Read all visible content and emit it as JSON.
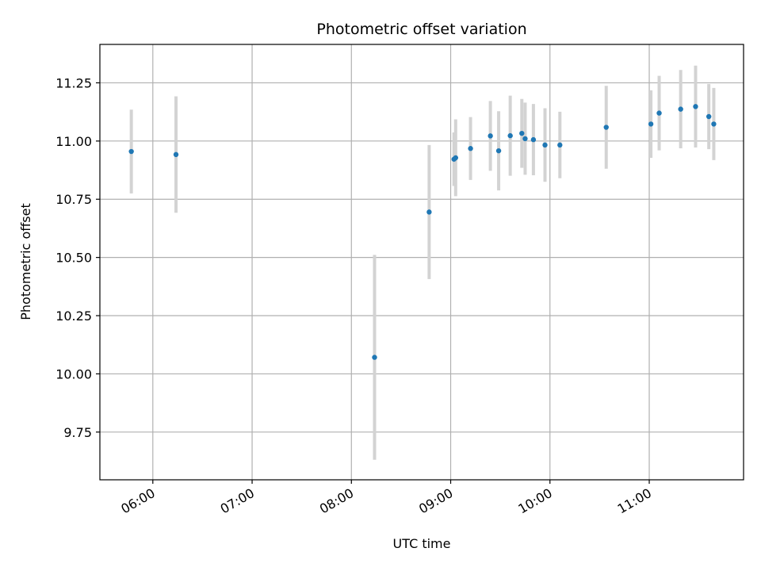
{
  "chart_data": {
    "type": "scatter",
    "title": "Photometric offset variation",
    "xlabel": "UTC time",
    "ylabel": "Photometric offset",
    "grid": true,
    "x_tick_labels": [
      "06:00",
      "07:00",
      "08:00",
      "09:00",
      "10:00",
      "11:00"
    ],
    "x_tick_values": [
      "06:00",
      "07:00",
      "08:00",
      "09:00",
      "10:00",
      "11:00"
    ],
    "xlim": [
      "05:28",
      "11:57"
    ],
    "ylim": [
      9.545,
      11.415
    ],
    "y_ticks": [
      9.75,
      10.0,
      10.25,
      10.5,
      10.75,
      11.0,
      11.25
    ],
    "y_tick_labels": [
      "9.75",
      "10.00",
      "10.25",
      "10.50",
      "10.75",
      "11.00",
      "11.25"
    ],
    "marker_color": "#1f77b4",
    "errorbar_color": "#d3d3d3",
    "points": [
      {
        "x": "05:47",
        "y": 10.955,
        "yerr": 0.18
      },
      {
        "x": "06:14",
        "y": 10.942,
        "yerr": 0.25
      },
      {
        "x": "08:14",
        "y": 10.071,
        "yerr": 0.44
      },
      {
        "x": "08:47",
        "y": 10.695,
        "yerr": 0.288
      },
      {
        "x": "09:02",
        "y": 10.922,
        "yerr": 0.115
      },
      {
        "x": "09:03",
        "y": 10.928,
        "yerr": 0.165
      },
      {
        "x": "09:12",
        "y": 10.968,
        "yerr": 0.135
      },
      {
        "x": "09:24",
        "y": 11.022,
        "yerr": 0.15
      },
      {
        "x": "09:29",
        "y": 10.958,
        "yerr": 0.17
      },
      {
        "x": "09:36",
        "y": 11.023,
        "yerr": 0.172
      },
      {
        "x": "09:43",
        "y": 11.033,
        "yerr": 0.148
      },
      {
        "x": "09:45",
        "y": 11.01,
        "yerr": 0.155
      },
      {
        "x": "09:50",
        "y": 11.006,
        "yerr": 0.153
      },
      {
        "x": "09:57",
        "y": 10.983,
        "yerr": 0.158
      },
      {
        "x": "10:06",
        "y": 10.983,
        "yerr": 0.143
      },
      {
        "x": "10:34",
        "y": 11.059,
        "yerr": 0.178
      },
      {
        "x": "11:01",
        "y": 11.073,
        "yerr": 0.145
      },
      {
        "x": "11:06",
        "y": 11.12,
        "yerr": 0.16
      },
      {
        "x": "11:19",
        "y": 11.137,
        "yerr": 0.168
      },
      {
        "x": "11:28",
        "y": 11.148,
        "yerr": 0.176
      },
      {
        "x": "11:36",
        "y": 11.105,
        "yerr": 0.14
      },
      {
        "x": "11:39",
        "y": 11.073,
        "yerr": 0.155
      }
    ]
  }
}
